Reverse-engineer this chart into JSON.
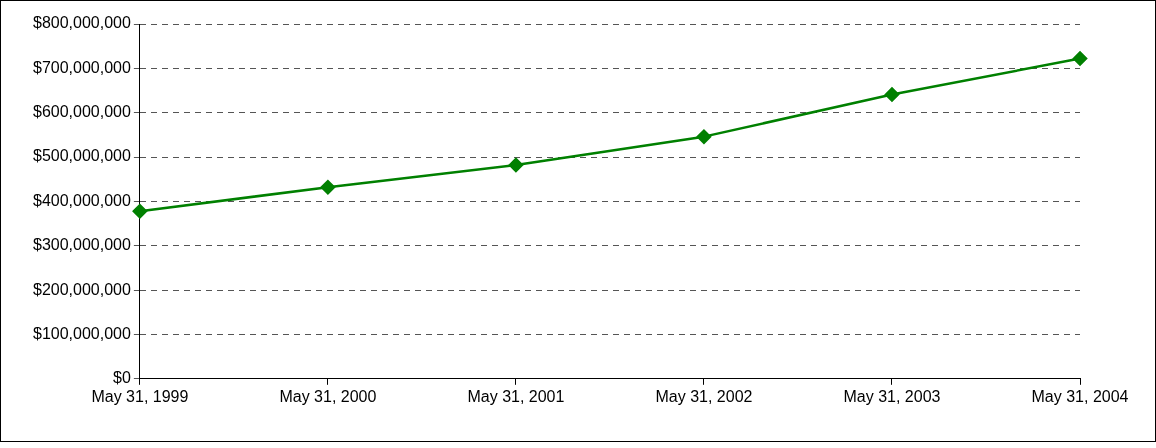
{
  "chart_data": {
    "type": "line",
    "categories": [
      "May 31, 1999",
      "May 31, 2000",
      "May 31, 2001",
      "May 31, 2002",
      "May 31, 2003",
      "May 31, 2004"
    ],
    "series": [
      {
        "color": "#008000",
        "values": [
          378000000,
          432000000,
          482000000,
          546000000,
          641000000,
          722000000
        ]
      }
    ],
    "ylim": [
      0,
      800000000
    ],
    "yticks": [
      {
        "value": 0,
        "label": "$0"
      },
      {
        "value": 100000000,
        "label": "$100,000,000"
      },
      {
        "value": 200000000,
        "label": "$200,000,000"
      },
      {
        "value": 300000000,
        "label": "$300,000,000"
      },
      {
        "value": 400000000,
        "label": "$400,000,000"
      },
      {
        "value": 500000000,
        "label": "$500,000,000"
      },
      {
        "value": 600000000,
        "label": "$600,000,000"
      },
      {
        "value": 700000000,
        "label": "$700,000,000"
      },
      {
        "value": 800000000,
        "label": "$800,000,000"
      }
    ],
    "grid": "y",
    "legend": false,
    "marker": "diamond",
    "line_style": "solid"
  }
}
